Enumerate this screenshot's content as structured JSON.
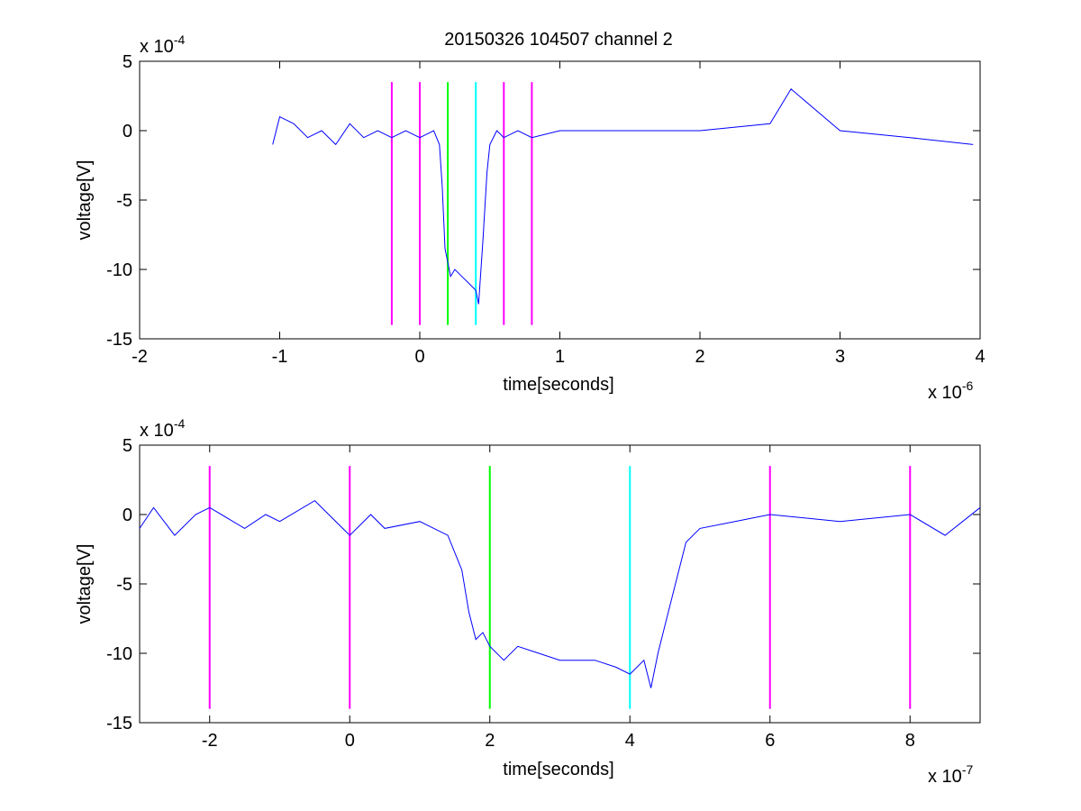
{
  "figure": {
    "title": "20150326 104507 channel 2",
    "colors": {
      "signal": "#0000ff",
      "magenta": "#ff00ff",
      "green": "#00ff00",
      "cyan": "#00ffff",
      "axis": "#000000"
    }
  },
  "chart_data": [
    {
      "type": "line",
      "title": "20150326 104507 channel 2",
      "xlabel": "time[seconds]",
      "ylabel": "voltage[V]",
      "x_exponent_label": "x 10",
      "x_exponent": "-6",
      "y_exponent_label": "x 10",
      "y_exponent": "-4",
      "xlim": [
        -2e-06,
        4e-06
      ],
      "ylim": [
        -0.0015,
        0.0005
      ],
      "xticks": [
        -2e-06,
        -1e-06,
        0,
        1e-06,
        2e-06,
        3e-06,
        4e-06
      ],
      "xtick_labels": [
        "-2",
        "-1",
        "0",
        "1",
        "2",
        "3",
        "4"
      ],
      "yticks": [
        0.0005,
        0,
        -0.0005,
        -0.001,
        -0.0015
      ],
      "ytick_labels": [
        "5",
        "0",
        "-5",
        "-10",
        "-15"
      ],
      "grid": false,
      "legend": "none",
      "series": [
        {
          "color": "#0000ff",
          "x": [
            -1.05e-06,
            -1e-06,
            -9e-07,
            -8e-07,
            -7e-07,
            -6e-07,
            -5e-07,
            -4e-07,
            -3e-07,
            -2e-07,
            -1e-07,
            0.0,
            1e-07,
            1.4e-07,
            1.6e-07,
            1.8e-07,
            2e-07,
            2.2e-07,
            2.5e-07,
            3e-07,
            3.5e-07,
            4e-07,
            4.2e-07,
            4.5e-07,
            4.8e-07,
            5e-07,
            5.5e-07,
            6e-07,
            7e-07,
            8e-07,
            1e-06,
            1.5e-06,
            2e-06,
            2.5e-06,
            2.65e-06,
            3e-06,
            3.5e-06,
            3.95e-06
          ],
          "y": [
            -0.0001,
            0.0001,
            5e-05,
            -5e-05,
            0,
            -0.0001,
            5e-05,
            -5e-05,
            0,
            -5e-05,
            0,
            -5e-05,
            0,
            -0.0001,
            -0.0004,
            -0.00085,
            -0.00095,
            -0.00105,
            -0.001,
            -0.00105,
            -0.0011,
            -0.00115,
            -0.00125,
            -0.0008,
            -0.0003,
            -0.0001,
            0,
            -5e-05,
            0,
            -5e-05,
            0,
            0,
            0,
            5e-05,
            0.0003,
            0,
            -5e-05,
            -0.0001
          ]
        }
      ],
      "vertical_lines": [
        {
          "x": -2e-07,
          "color": "#ff00ff"
        },
        {
          "x": 0.0,
          "color": "#ff00ff"
        },
        {
          "x": 2e-07,
          "color": "#00ff00"
        },
        {
          "x": 4e-07,
          "color": "#00ffff"
        },
        {
          "x": 6e-07,
          "color": "#ff00ff"
        },
        {
          "x": 8e-07,
          "color": "#ff00ff"
        }
      ],
      "vline_range": [
        -0.0014,
        0.00035
      ]
    },
    {
      "type": "line",
      "title": "",
      "xlabel": "time[seconds]",
      "ylabel": "voltage[V]",
      "x_exponent_label": "x 10",
      "x_exponent": "-7",
      "y_exponent_label": "x 10",
      "y_exponent": "-4",
      "xlim": [
        -3e-07,
        9e-07
      ],
      "ylim": [
        -0.0015,
        0.0005
      ],
      "xticks": [
        -2e-07,
        0,
        2e-07,
        4e-07,
        6e-07,
        8e-07
      ],
      "xtick_labels": [
        "-2",
        "0",
        "2",
        "4",
        "6",
        "8"
      ],
      "yticks": [
        0.0005,
        0,
        -0.0005,
        -0.001,
        -0.0015
      ],
      "ytick_labels": [
        "5",
        "0",
        "-5",
        "-10",
        "-15"
      ],
      "grid": false,
      "legend": "none",
      "series": [
        {
          "color": "#0000ff",
          "x": [
            -3e-07,
            -2.8e-07,
            -2.5e-07,
            -2.2e-07,
            -2e-07,
            -1.5e-07,
            -1.2e-07,
            -1e-07,
            -5e-08,
            0.0,
            3e-08,
            5e-08,
            1e-07,
            1.4e-07,
            1.6e-07,
            1.7e-07,
            1.8e-07,
            1.9e-07,
            2e-07,
            2.2e-07,
            2.4e-07,
            2.7e-07,
            3e-07,
            3.5e-07,
            3.8e-07,
            4e-07,
            4.2e-07,
            4.3e-07,
            4.4e-07,
            4.5e-07,
            4.6e-07,
            4.8e-07,
            5e-07,
            5.5e-07,
            6e-07,
            7e-07,
            8e-07,
            8.5e-07,
            9e-07
          ],
          "y": [
            -0.0001,
            5e-05,
            -0.00015,
            0,
            5e-05,
            -0.0001,
            0,
            -5e-05,
            0.0001,
            -0.00015,
            0,
            -0.0001,
            -5e-05,
            -0.00015,
            -0.0004,
            -0.0007,
            -0.0009,
            -0.00085,
            -0.00095,
            -0.00105,
            -0.00095,
            -0.001,
            -0.00105,
            -0.00105,
            -0.0011,
            -0.00115,
            -0.00105,
            -0.00125,
            -0.001,
            -0.0008,
            -0.0006,
            -0.0002,
            -0.0001,
            -5e-05,
            0,
            -5e-05,
            0,
            -0.00015,
            5e-05
          ]
        }
      ],
      "vertical_lines": [
        {
          "x": -2e-07,
          "color": "#ff00ff"
        },
        {
          "x": 0.0,
          "color": "#ff00ff"
        },
        {
          "x": 2e-07,
          "color": "#00ff00"
        },
        {
          "x": 4e-07,
          "color": "#00ffff"
        },
        {
          "x": 6e-07,
          "color": "#ff00ff"
        },
        {
          "x": 8e-07,
          "color": "#ff00ff"
        }
      ],
      "vline_range": [
        -0.0014,
        0.00035
      ]
    }
  ]
}
